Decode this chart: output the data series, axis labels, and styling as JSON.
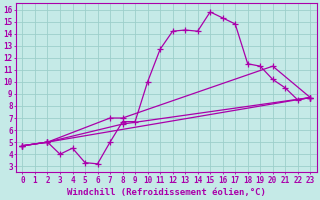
{
  "xlabel": "Windchill (Refroidissement éolien,°C)",
  "xlim": [
    -0.5,
    23.5
  ],
  "ylim": [
    2.5,
    16.5
  ],
  "xticks": [
    0,
    1,
    2,
    3,
    4,
    5,
    6,
    7,
    8,
    9,
    10,
    11,
    12,
    13,
    14,
    15,
    16,
    17,
    18,
    19,
    20,
    21,
    22,
    23
  ],
  "yticks": [
    3,
    4,
    5,
    6,
    7,
    8,
    9,
    10,
    11,
    12,
    13,
    14,
    15,
    16
  ],
  "background_color": "#c5eae7",
  "grid_color": "#9dcfcb",
  "line_color": "#aa00aa",
  "line1": {
    "x": [
      0,
      2,
      3,
      4,
      5,
      6,
      7,
      8,
      9,
      10,
      11,
      12,
      13,
      14,
      15,
      16,
      17,
      18,
      19,
      20,
      21,
      22,
      23
    ],
    "y": [
      4.7,
      5.0,
      4.0,
      4.5,
      3.3,
      3.2,
      5.0,
      6.7,
      6.7,
      10.0,
      12.7,
      14.2,
      14.3,
      14.2,
      15.8,
      15.3,
      14.8,
      11.5,
      11.3,
      10.2,
      9.5,
      8.5,
      8.7
    ]
  },
  "line2": {
    "x": [
      0,
      2,
      7,
      8,
      20,
      23
    ],
    "y": [
      4.7,
      5.0,
      7.0,
      7.0,
      11.3,
      8.7
    ]
  },
  "line3": {
    "x": [
      0,
      2,
      8,
      23
    ],
    "y": [
      4.7,
      5.0,
      6.5,
      8.7
    ]
  },
  "line4": {
    "x": [
      0,
      2,
      23
    ],
    "y": [
      4.7,
      5.0,
      8.7
    ]
  },
  "marker": "+",
  "markersize": 4,
  "linewidth": 0.9,
  "tick_fontsize": 5.5,
  "label_fontsize": 6.5
}
